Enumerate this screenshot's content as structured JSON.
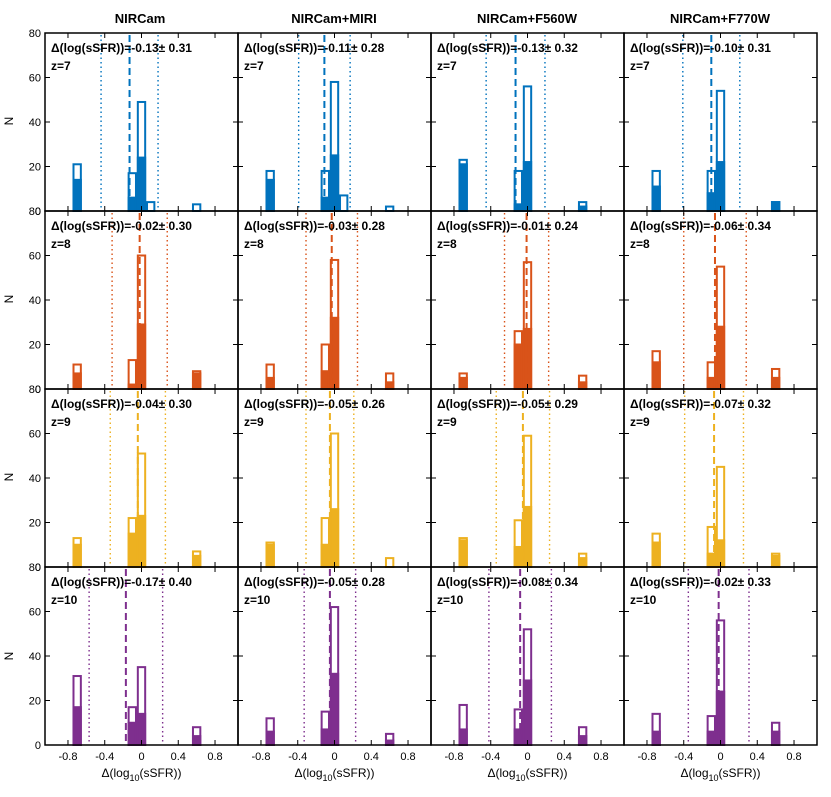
{
  "figure": {
    "ylabel": "N",
    "xlabel_prefix": "Δ(log",
    "xlabel_sub": "10",
    "xlabel_suffix": "(sSFR))",
    "columns": [
      "NIRCam",
      "NIRCam+MIRI",
      "NIRCam+F560W",
      "NIRCam+F770W"
    ]
  },
  "colors": {
    "z7": "#0072BD",
    "z8": "#D95319",
    "z9": "#EDB120",
    "z10": "#7E2F8E"
  },
  "chart_data": [
    {
      "type": "bar",
      "row": 0,
      "col": 0,
      "redshift": "z=7",
      "color": "#0072BD",
      "annotation": "Δ(log(sSFR))=-0.13± 0.31",
      "median": -0.13,
      "sigma": 0.31,
      "xlim": [
        -1.05,
        1.05
      ],
      "ylim": [
        0,
        80
      ],
      "bin_width": 0.1,
      "xticks": [
        -0.8,
        -0.4,
        0,
        0.4,
        0.8
      ],
      "xtick_labels": [
        "-0.8",
        "-0.4",
        "0",
        "0.4",
        "0.8"
      ],
      "yticks": [
        0,
        20,
        40,
        60,
        80
      ],
      "ytick_labels": [
        "0",
        "20",
        "40",
        "60",
        "80"
      ],
      "bins": [
        {
          "x": -0.7,
          "total": 21,
          "filled": 14
        },
        {
          "x": -0.1,
          "total": 17,
          "filled": 6
        },
        {
          "x": 0.0,
          "total": 49,
          "filled": 24
        },
        {
          "x": 0.1,
          "total": 4,
          "filled": 0
        },
        {
          "x": 0.6,
          "total": 3,
          "filled": 0
        }
      ]
    },
    {
      "type": "bar",
      "row": 0,
      "col": 1,
      "redshift": "z=7",
      "color": "#0072BD",
      "annotation": "Δ(log(sSFR))=-0.11± 0.28",
      "median": -0.11,
      "sigma": 0.28,
      "xlim": [
        -1.05,
        1.05
      ],
      "ylim": [
        0,
        80
      ],
      "bin_width": 0.1,
      "xticks": [
        -0.8,
        -0.4,
        0,
        0.4,
        0.8
      ],
      "xtick_labels": [
        "-0.8",
        "-0.4",
        "0",
        "0.4",
        "0.8"
      ],
      "yticks": [
        0,
        20,
        40,
        60,
        80
      ],
      "ytick_labels": [
        "0",
        "20",
        "40",
        "60",
        "80"
      ],
      "bins": [
        {
          "x": -0.7,
          "total": 18,
          "filled": 14
        },
        {
          "x": -0.1,
          "total": 18,
          "filled": 6
        },
        {
          "x": 0.0,
          "total": 58,
          "filled": 25
        },
        {
          "x": 0.1,
          "total": 7,
          "filled": 0
        },
        {
          "x": 0.6,
          "total": 2,
          "filled": 0
        }
      ]
    },
    {
      "type": "bar",
      "row": 0,
      "col": 2,
      "redshift": "z=7",
      "color": "#0072BD",
      "annotation": "Δ(log(sSFR))=-0.13± 0.32",
      "median": -0.13,
      "sigma": 0.32,
      "xlim": [
        -1.05,
        1.05
      ],
      "ylim": [
        0,
        80
      ],
      "bin_width": 0.1,
      "xticks": [
        -0.8,
        -0.4,
        0,
        0.4,
        0.8
      ],
      "xtick_labels": [
        "-0.8",
        "-0.4",
        "0",
        "0.4",
        "0.8"
      ],
      "yticks": [
        0,
        20,
        40,
        60,
        80
      ],
      "ytick_labels": [
        "0",
        "20",
        "40",
        "60",
        "80"
      ],
      "bins": [
        {
          "x": -0.7,
          "total": 23,
          "filled": 21
        },
        {
          "x": -0.1,
          "total": 18,
          "filled": 3
        },
        {
          "x": 0.0,
          "total": 56,
          "filled": 22
        },
        {
          "x": 0.6,
          "total": 4,
          "filled": 2
        }
      ]
    },
    {
      "type": "bar",
      "row": 0,
      "col": 3,
      "redshift": "z=7",
      "color": "#0072BD",
      "annotation": "Δ(log(sSFR))=-0.10± 0.31",
      "median": -0.1,
      "sigma": 0.31,
      "xlim": [
        -1.05,
        1.05
      ],
      "ylim": [
        0,
        80
      ],
      "bin_width": 0.1,
      "xticks": [
        -0.8,
        -0.4,
        0,
        0.4,
        0.8
      ],
      "xtick_labels": [
        "-0.8",
        "-0.4",
        "0",
        "0.4",
        "0.8"
      ],
      "yticks": [
        0,
        20,
        40,
        60,
        80
      ],
      "ytick_labels": [
        "0",
        "20",
        "40",
        "60",
        "80"
      ],
      "bins": [
        {
          "x": -0.7,
          "total": 18,
          "filled": 11
        },
        {
          "x": -0.1,
          "total": 18,
          "filled": 8
        },
        {
          "x": 0.0,
          "total": 54,
          "filled": 22
        },
        {
          "x": 0.6,
          "total": 4,
          "filled": 4
        }
      ]
    },
    {
      "type": "bar",
      "row": 1,
      "col": 0,
      "redshift": "z=8",
      "color": "#D95319",
      "annotation": "Δ(log(sSFR))=-0.02± 0.30",
      "median": -0.02,
      "sigma": 0.3,
      "xlim": [
        -1.05,
        1.05
      ],
      "ylim": [
        0,
        80
      ],
      "bin_width": 0.1,
      "xticks": [
        -0.8,
        -0.4,
        0,
        0.4,
        0.8
      ],
      "xtick_labels": [
        "-0.8",
        "-0.4",
        "0",
        "0.4",
        "0.8"
      ],
      "yticks": [
        0,
        20,
        40,
        60,
        80
      ],
      "ytick_labels": [
        "0",
        "20",
        "40",
        "60",
        "80"
      ],
      "bins": [
        {
          "x": -0.7,
          "total": 11,
          "filled": 7
        },
        {
          "x": -0.1,
          "total": 13,
          "filled": 2
        },
        {
          "x": 0.0,
          "total": 60,
          "filled": 29
        },
        {
          "x": 0.6,
          "total": 8,
          "filled": 7
        }
      ]
    },
    {
      "type": "bar",
      "row": 1,
      "col": 1,
      "redshift": "z=8",
      "color": "#D95319",
      "annotation": "Δ(log(sSFR))=-0.03± 0.28",
      "median": -0.03,
      "sigma": 0.28,
      "xlim": [
        -1.05,
        1.05
      ],
      "ylim": [
        0,
        80
      ],
      "bin_width": 0.1,
      "xticks": [
        -0.8,
        -0.4,
        0,
        0.4,
        0.8
      ],
      "xtick_labels": [
        "-0.8",
        "-0.4",
        "0",
        "0.4",
        "0.8"
      ],
      "yticks": [
        0,
        20,
        40,
        60,
        80
      ],
      "ytick_labels": [
        "0",
        "20",
        "40",
        "60",
        "80"
      ],
      "bins": [
        {
          "x": -0.7,
          "total": 11,
          "filled": 5
        },
        {
          "x": -0.1,
          "total": 20,
          "filled": 8
        },
        {
          "x": 0.0,
          "total": 58,
          "filled": 32
        },
        {
          "x": 0.6,
          "total": 7,
          "filled": 3
        }
      ]
    },
    {
      "type": "bar",
      "row": 1,
      "col": 2,
      "redshift": "z=8",
      "color": "#D95319",
      "annotation": "Δ(log(sSFR))=-0.01± 0.24",
      "median": -0.01,
      "sigma": 0.24,
      "xlim": [
        -1.05,
        1.05
      ],
      "ylim": [
        0,
        80
      ],
      "bin_width": 0.1,
      "xticks": [
        -0.8,
        -0.4,
        0,
        0.4,
        0.8
      ],
      "xtick_labels": [
        "-0.8",
        "-0.4",
        "0",
        "0.4",
        "0.8"
      ],
      "yticks": [
        0,
        20,
        40,
        60,
        80
      ],
      "ytick_labels": [
        "0",
        "20",
        "40",
        "60",
        "80"
      ],
      "bins": [
        {
          "x": -0.7,
          "total": 7,
          "filled": 5
        },
        {
          "x": -0.1,
          "total": 26,
          "filled": 20
        },
        {
          "x": 0.0,
          "total": 57,
          "filled": 27
        },
        {
          "x": 0.6,
          "total": 6,
          "filled": 3
        }
      ]
    },
    {
      "type": "bar",
      "row": 1,
      "col": 3,
      "redshift": "z=8",
      "color": "#D95319",
      "annotation": "Δ(log(sSFR))=-0.06± 0.34",
      "median": -0.06,
      "sigma": 0.34,
      "xlim": [
        -1.05,
        1.05
      ],
      "ylim": [
        0,
        80
      ],
      "bin_width": 0.1,
      "xticks": [
        -0.8,
        -0.4,
        0,
        0.4,
        0.8
      ],
      "xtick_labels": [
        "-0.8",
        "-0.4",
        "0",
        "0.4",
        "0.8"
      ],
      "yticks": [
        0,
        20,
        40,
        60,
        80
      ],
      "ytick_labels": [
        "0",
        "20",
        "40",
        "60",
        "80"
      ],
      "bins": [
        {
          "x": -0.7,
          "total": 17,
          "filled": 12
        },
        {
          "x": -0.1,
          "total": 12,
          "filled": 5
        },
        {
          "x": 0.0,
          "total": 55,
          "filled": 28
        },
        {
          "x": 0.6,
          "total": 9,
          "filled": 5
        }
      ]
    },
    {
      "type": "bar",
      "row": 2,
      "col": 0,
      "redshift": "z=9",
      "color": "#EDB120",
      "annotation": "Δ(log(sSFR))=-0.04± 0.30",
      "median": -0.04,
      "sigma": 0.3,
      "xlim": [
        -1.05,
        1.05
      ],
      "ylim": [
        0,
        80
      ],
      "bin_width": 0.1,
      "xticks": [
        -0.8,
        -0.4,
        0,
        0.4,
        0.8
      ],
      "xtick_labels": [
        "-0.8",
        "-0.4",
        "0",
        "0.4",
        "0.8"
      ],
      "yticks": [
        0,
        20,
        40,
        60,
        80
      ],
      "ytick_labels": [
        "0",
        "20",
        "40",
        "60",
        "80"
      ],
      "bins": [
        {
          "x": -0.7,
          "total": 13,
          "filled": 10
        },
        {
          "x": -0.1,
          "total": 22,
          "filled": 15
        },
        {
          "x": 0.0,
          "total": 51,
          "filled": 23
        },
        {
          "x": 0.6,
          "total": 7,
          "filled": 5
        }
      ]
    },
    {
      "type": "bar",
      "row": 2,
      "col": 1,
      "redshift": "z=9",
      "color": "#EDB120",
      "annotation": "Δ(log(sSFR))=-0.05± 0.26",
      "median": -0.05,
      "sigma": 0.26,
      "xlim": [
        -1.05,
        1.05
      ],
      "ylim": [
        0,
        80
      ],
      "bin_width": 0.1,
      "xticks": [
        -0.8,
        -0.4,
        0,
        0.4,
        0.8
      ],
      "xtick_labels": [
        "-0.8",
        "-0.4",
        "0",
        "0.4",
        "0.8"
      ],
      "yticks": [
        0,
        20,
        40,
        60,
        80
      ],
      "ytick_labels": [
        "0",
        "20",
        "40",
        "60",
        "80"
      ],
      "bins": [
        {
          "x": -0.7,
          "total": 11,
          "filled": 10
        },
        {
          "x": -0.1,
          "total": 22,
          "filled": 10
        },
        {
          "x": 0.0,
          "total": 60,
          "filled": 26
        },
        {
          "x": 0.6,
          "total": 4,
          "filled": 0
        }
      ]
    },
    {
      "type": "bar",
      "row": 2,
      "col": 2,
      "redshift": "z=9",
      "color": "#EDB120",
      "annotation": "Δ(log(sSFR))=-0.05± 0.29",
      "median": -0.05,
      "sigma": 0.29,
      "xlim": [
        -1.05,
        1.05
      ],
      "ylim": [
        0,
        80
      ],
      "bin_width": 0.1,
      "xticks": [
        -0.8,
        -0.4,
        0,
        0.4,
        0.8
      ],
      "xtick_labels": [
        "-0.8",
        "-0.4",
        "0",
        "0.4",
        "0.8"
      ],
      "yticks": [
        0,
        20,
        40,
        60,
        80
      ],
      "ytick_labels": [
        "0",
        "20",
        "40",
        "60",
        "80"
      ],
      "bins": [
        {
          "x": -0.7,
          "total": 13,
          "filled": 12
        },
        {
          "x": -0.1,
          "total": 21,
          "filled": 9
        },
        {
          "x": 0.0,
          "total": 59,
          "filled": 27
        },
        {
          "x": 0.6,
          "total": 6,
          "filled": 4
        }
      ]
    },
    {
      "type": "bar",
      "row": 2,
      "col": 3,
      "redshift": "z=9",
      "color": "#EDB120",
      "annotation": "Δ(log(sSFR))=-0.07± 0.32",
      "median": -0.07,
      "sigma": 0.32,
      "xlim": [
        -1.05,
        1.05
      ],
      "ylim": [
        0,
        80
      ],
      "bin_width": 0.1,
      "xticks": [
        -0.8,
        -0.4,
        0,
        0.4,
        0.8
      ],
      "xtick_labels": [
        "-0.8",
        "-0.4",
        "0",
        "0.4",
        "0.8"
      ],
      "yticks": [
        0,
        20,
        40,
        60,
        80
      ],
      "ytick_labels": [
        "0",
        "20",
        "40",
        "60",
        "80"
      ],
      "bins": [
        {
          "x": -0.7,
          "total": 15,
          "filled": 11
        },
        {
          "x": -0.1,
          "total": 18,
          "filled": 6
        },
        {
          "x": 0.0,
          "total": 45,
          "filled": 12
        },
        {
          "x": 0.6,
          "total": 6,
          "filled": 5
        }
      ]
    },
    {
      "type": "bar",
      "row": 3,
      "col": 0,
      "redshift": "z=10",
      "color": "#7E2F8E",
      "annotation": "Δ(log(sSFR))=-0.17± 0.40",
      "median": -0.17,
      "sigma": 0.4,
      "xlim": [
        -1.05,
        1.05
      ],
      "ylim": [
        0,
        80
      ],
      "bin_width": 0.1,
      "xticks": [
        -0.8,
        -0.4,
        0,
        0.4,
        0.8
      ],
      "xtick_labels": [
        "-0.8",
        "-0.4",
        "0",
        "0.4",
        "0.8"
      ],
      "yticks": [
        0,
        20,
        40,
        60,
        80
      ],
      "ytick_labels": [
        "0",
        "20",
        "40",
        "60",
        "80"
      ],
      "bins": [
        {
          "x": -0.7,
          "total": 31,
          "filled": 17
        },
        {
          "x": -0.1,
          "total": 17,
          "filled": 10
        },
        {
          "x": 0.0,
          "total": 35,
          "filled": 14
        },
        {
          "x": 0.6,
          "total": 8,
          "filled": 4
        }
      ]
    },
    {
      "type": "bar",
      "row": 3,
      "col": 1,
      "redshift": "z=10",
      "color": "#7E2F8E",
      "annotation": "Δ(log(sSFR))=-0.05± 0.28",
      "median": -0.05,
      "sigma": 0.28,
      "xlim": [
        -1.05,
        1.05
      ],
      "ylim": [
        0,
        80
      ],
      "bin_width": 0.1,
      "xticks": [
        -0.8,
        -0.4,
        0,
        0.4,
        0.8
      ],
      "xtick_labels": [
        "-0.8",
        "-0.4",
        "0",
        "0.4",
        "0.8"
      ],
      "yticks": [
        0,
        20,
        40,
        60,
        80
      ],
      "ytick_labels": [
        "0",
        "20",
        "40",
        "60",
        "80"
      ],
      "bins": [
        {
          "x": -0.7,
          "total": 12,
          "filled": 6
        },
        {
          "x": -0.1,
          "total": 15,
          "filled": 7
        },
        {
          "x": 0.0,
          "total": 62,
          "filled": 32
        },
        {
          "x": 0.6,
          "total": 5,
          "filled": 2
        }
      ]
    },
    {
      "type": "bar",
      "row": 3,
      "col": 2,
      "redshift": "z=10",
      "color": "#7E2F8E",
      "annotation": "Δ(log(sSFR))=-0.08± 0.34",
      "median": -0.08,
      "sigma": 0.34,
      "xlim": [
        -1.05,
        1.05
      ],
      "ylim": [
        0,
        80
      ],
      "bin_width": 0.1,
      "xticks": [
        -0.8,
        -0.4,
        0,
        0.4,
        0.8
      ],
      "xtick_labels": [
        "-0.8",
        "-0.4",
        "0",
        "0.4",
        "0.8"
      ],
      "yticks": [
        0,
        20,
        40,
        60,
        80
      ],
      "ytick_labels": [
        "0",
        "20",
        "40",
        "60",
        "80"
      ],
      "bins": [
        {
          "x": -0.7,
          "total": 18,
          "filled": 7
        },
        {
          "x": -0.1,
          "total": 16,
          "filled": 7
        },
        {
          "x": 0.0,
          "total": 52,
          "filled": 29
        },
        {
          "x": 0.6,
          "total": 8,
          "filled": 4
        }
      ]
    },
    {
      "type": "bar",
      "row": 3,
      "col": 3,
      "redshift": "z=10",
      "color": "#7E2F8E",
      "annotation": "Δ(log(sSFR))=-0.02± 0.33",
      "median": -0.02,
      "sigma": 0.33,
      "xlim": [
        -1.05,
        1.05
      ],
      "ylim": [
        0,
        80
      ],
      "bin_width": 0.1,
      "xticks": [
        -0.8,
        -0.4,
        0,
        0.4,
        0.8
      ],
      "xtick_labels": [
        "-0.8",
        "-0.4",
        "0",
        "0.4",
        "0.8"
      ],
      "yticks": [
        0,
        20,
        40,
        60,
        80
      ],
      "ytick_labels": [
        "0",
        "20",
        "40",
        "60",
        "80"
      ],
      "bins": [
        {
          "x": -0.7,
          "total": 14,
          "filled": 6
        },
        {
          "x": -0.1,
          "total": 13,
          "filled": 6
        },
        {
          "x": 0.0,
          "total": 56,
          "filled": 24
        },
        {
          "x": 0.6,
          "total": 10,
          "filled": 6
        }
      ]
    }
  ]
}
